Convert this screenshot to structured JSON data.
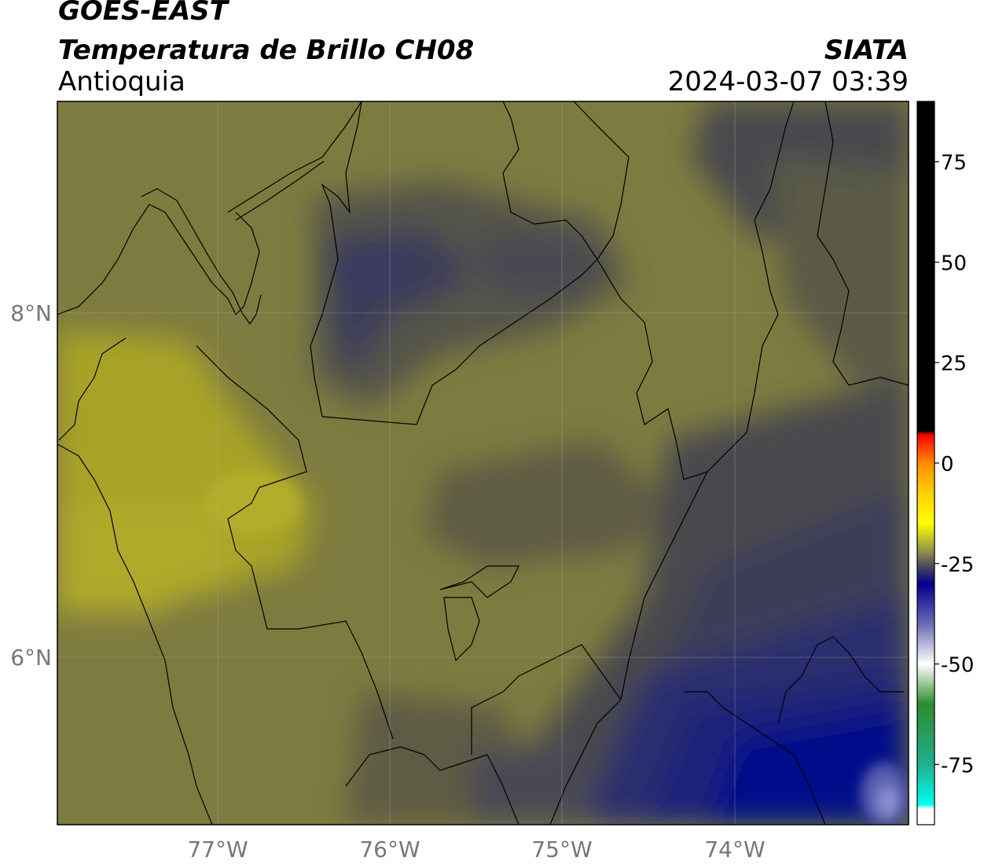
{
  "header": {
    "satellite": "GOES-EAST",
    "product": "Temperatura de Brillo CH08",
    "region": "Antioquia",
    "agency": "SIATA",
    "datetime": "2024-03-07 03:39"
  },
  "map": {
    "lon_ticks": [
      "77°W",
      "76°W",
      "75°W",
      "74°W"
    ],
    "lat_ticks": [
      "8°N",
      "6°N"
    ],
    "lon_range": [
      -77.95,
      -72.98
    ],
    "lat_range": [
      4.97,
      9.17
    ]
  },
  "colorbar": {
    "ticks": [
      "75",
      "50",
      "25",
      "0",
      "-25",
      "-50",
      "-75"
    ],
    "range": [
      -90,
      90
    ],
    "stops": [
      {
        "value": 90,
        "color": "#000000"
      },
      {
        "value": 8,
        "color": "#000000"
      },
      {
        "value": 7,
        "color": "#ff0000"
      },
      {
        "value": 0,
        "color": "#ff8c00"
      },
      {
        "value": -8,
        "color": "#ffd400"
      },
      {
        "value": -15,
        "color": "#ffff00"
      },
      {
        "value": -22,
        "color": "#8f8f4a"
      },
      {
        "value": -26,
        "color": "#454560"
      },
      {
        "value": -30,
        "color": "#00008b"
      },
      {
        "value": -40,
        "color": "#6a6ab5"
      },
      {
        "value": -50,
        "color": "#ffffff"
      },
      {
        "value": -60,
        "color": "#2e8b2e"
      },
      {
        "value": -75,
        "color": "#20b090"
      },
      {
        "value": -85,
        "color": "#00ffee"
      },
      {
        "value": -86,
        "color": "#ffffff"
      },
      {
        "value": -90,
        "color": "#ffffff"
      }
    ]
  },
  "colors": {
    "warm_yellow": "#a8a328",
    "olive": "#7e7b40",
    "dark_olive": "#5e5c45",
    "gray": "#4a4a4e",
    "dark_purple": "#3c3c5a",
    "navy": "#1e237a",
    "deep_blue": "#00108a"
  }
}
